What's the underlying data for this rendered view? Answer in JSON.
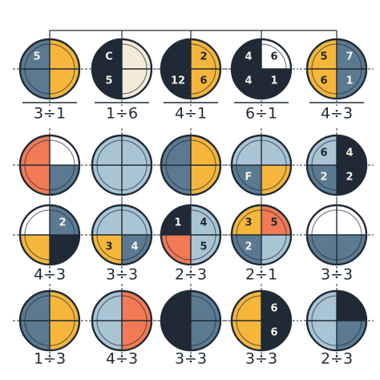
{
  "grid": {
    "rows": [
      {
        "cells": [
          {
            "fills": [
              "#5b7a91",
              "#f5b63b",
              "#f5b63b",
              "#5b7a91"
            ],
            "digits": {
              "tl": "5"
            },
            "label": "3÷1"
          },
          {
            "fills": [
              "#1f2a36",
              "#f3ead9",
              "#f3ead9",
              "#1f2a36"
            ],
            "digits": {
              "tl": "C",
              "bl": "5"
            },
            "label": "1÷6"
          },
          {
            "fills": [
              "#1f2a36",
              "#f5b63b",
              "#f5b63b",
              "#1f2a36"
            ],
            "digits": {
              "tr": "2",
              "bl": "12",
              "br": "6"
            },
            "label": "4÷1"
          },
          {
            "fills": [
              "#1f2a36",
              "#ffffff",
              "#1f2a36",
              "#1f2a36"
            ],
            "digits": {
              "tl": "4",
              "tr": "6",
              "bl": "4",
              "br": "1"
            },
            "label": "6÷1"
          },
          {
            "fills": [
              "#f5b63b",
              "#5b7a91",
              "#5b7a91",
              "#f5b63b"
            ],
            "digits": {
              "tl": "5",
              "tr": "7",
              "bl": "6",
              "br": "1"
            },
            "label": "4÷3"
          }
        ]
      },
      {
        "cells": [
          {
            "fills": [
              "#f27a54",
              "#ffffff",
              "#5b7a91",
              "#f27a54"
            ]
          },
          {
            "fills": [
              "#a9c4d3",
              "#a9c4d3",
              "#a9c4d3",
              "#a9c4d3"
            ]
          },
          {
            "fills": [
              "#5b7a91",
              "#f5b63b",
              "#f5b63b",
              "#5b7a91"
            ]
          },
          {
            "fills": [
              "#a9c4d3",
              "#a9c4d3",
              "#f5b63b",
              "#5b7a91"
            ],
            "digits": {
              "bl": "F"
            }
          },
          {
            "fills": [
              "#a9c4d3",
              "#1f2a36",
              "#1f2a36",
              "#5b7a91"
            ],
            "digits": {
              "tl": "6",
              "tr": "4",
              "bl": "2",
              "br": "2"
            }
          }
        ]
      },
      {
        "cells": [
          {
            "fills": [
              "#ffffff",
              "#5b7a91",
              "#1f2a36",
              "#f5b63b"
            ],
            "digits": {
              "tr": "2"
            },
            "label": "4÷3"
          },
          {
            "fills": [
              "#a9c4d3",
              "#a9c4d3",
              "#5b7a91",
              "#f5b63b"
            ],
            "digits": {
              "bl": "3",
              "br": "4"
            },
            "label": "3÷3"
          },
          {
            "fills": [
              "#1f2a36",
              "#a9c4d3",
              "#a9c4d3",
              "#f27a54"
            ],
            "digits": {
              "tl": "1",
              "tr": "4",
              "br": "5"
            },
            "label": "2÷3"
          },
          {
            "fills": [
              "#f5b63b",
              "#f27a54",
              "#a9c4d3",
              "#5b7a91"
            ],
            "digits": {
              "tl": "3",
              "tr": "5",
              "bl": "2"
            },
            "label": "2÷1"
          },
          {
            "fills": [
              "#ffffff",
              "#ffffff",
              "#5b7a91",
              "#5b7a91"
            ],
            "label": "3÷3"
          }
        ]
      },
      {
        "cells": [
          {
            "fills": [
              "#5b7a91",
              "#f5b63b",
              "#f5b63b",
              "#5b7a91"
            ],
            "label": "1÷3"
          },
          {
            "fills": [
              "#a9c4d3",
              "#f27a54",
              "#f27a54",
              "#a9c4d3"
            ],
            "label": "4÷3"
          },
          {
            "fills": [
              "#1f2a36",
              "#5b7a91",
              "#5b7a91",
              "#1f2a36"
            ],
            "label": "3÷3"
          },
          {
            "fills": [
              "#f5b63b",
              "#1f2a36",
              "#1f2a36",
              "#f5b63b"
            ],
            "digits": {
              "tr": "6",
              "br": "6"
            },
            "label": "3÷3"
          },
          {
            "fills": [
              "#a9c4d3",
              "#1f2a36",
              "#5b7a91",
              "#a9c4d3"
            ],
            "label": "2÷3"
          }
        ]
      }
    ]
  }
}
